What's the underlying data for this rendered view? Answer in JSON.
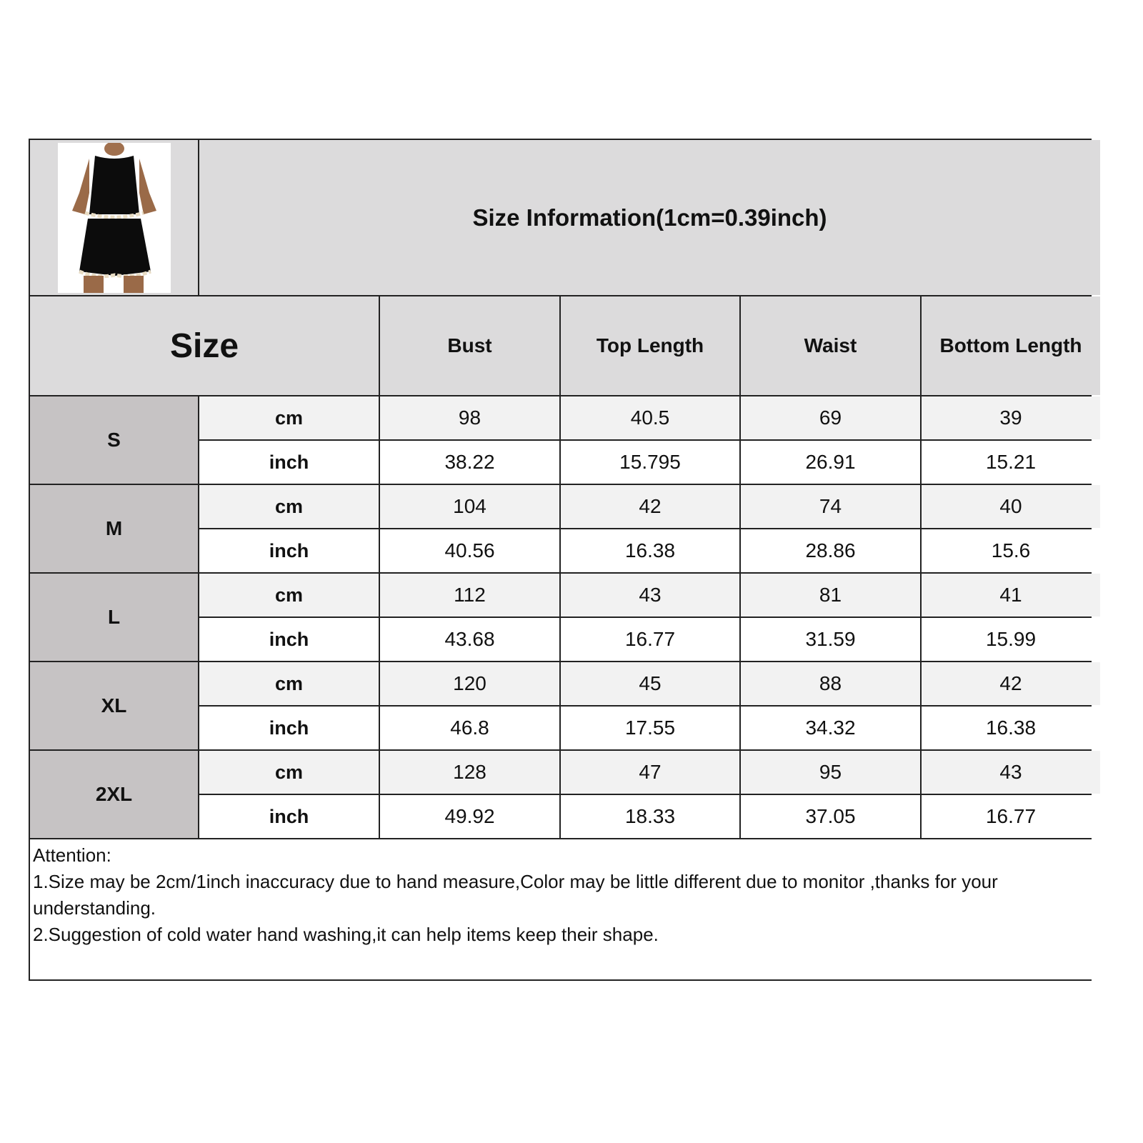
{
  "title": "Size Information(1cm=0.39inch)",
  "size_header": "Size",
  "columns": [
    "Bust",
    "Top Length",
    "Waist",
    "Bottom Length"
  ],
  "units": {
    "cm": "cm",
    "inch": "inch"
  },
  "sizes": [
    {
      "label": "S",
      "cm": [
        "98",
        "40.5",
        "69",
        "39"
      ],
      "inch": [
        "38.22",
        "15.795",
        "26.91",
        "15.21"
      ]
    },
    {
      "label": "M",
      "cm": [
        "104",
        "42",
        "74",
        "40"
      ],
      "inch": [
        "40.56",
        "16.38",
        "28.86",
        "15.6"
      ]
    },
    {
      "label": "L",
      "cm": [
        "112",
        "43",
        "81",
        "41"
      ],
      "inch": [
        "43.68",
        "16.77",
        "31.59",
        "15.99"
      ]
    },
    {
      "label": "XL",
      "cm": [
        "120",
        "45",
        "88",
        "42"
      ],
      "inch": [
        "46.8",
        "17.55",
        "34.32",
        "16.38"
      ]
    },
    {
      "label": "2XL",
      "cm": [
        "128",
        "47",
        "95",
        "43"
      ],
      "inch": [
        "49.92",
        "18.33",
        "37.05",
        "16.77"
      ]
    }
  ],
  "notes": {
    "heading": "Attention:",
    "line1": "1.Size may be 2cm/1inch inaccuracy due to hand measure,Color may be little different due to monitor ,thanks for your understanding.",
    "line2": "2.Suggestion of cold water hand washing,it can help items keep their shape."
  }
}
